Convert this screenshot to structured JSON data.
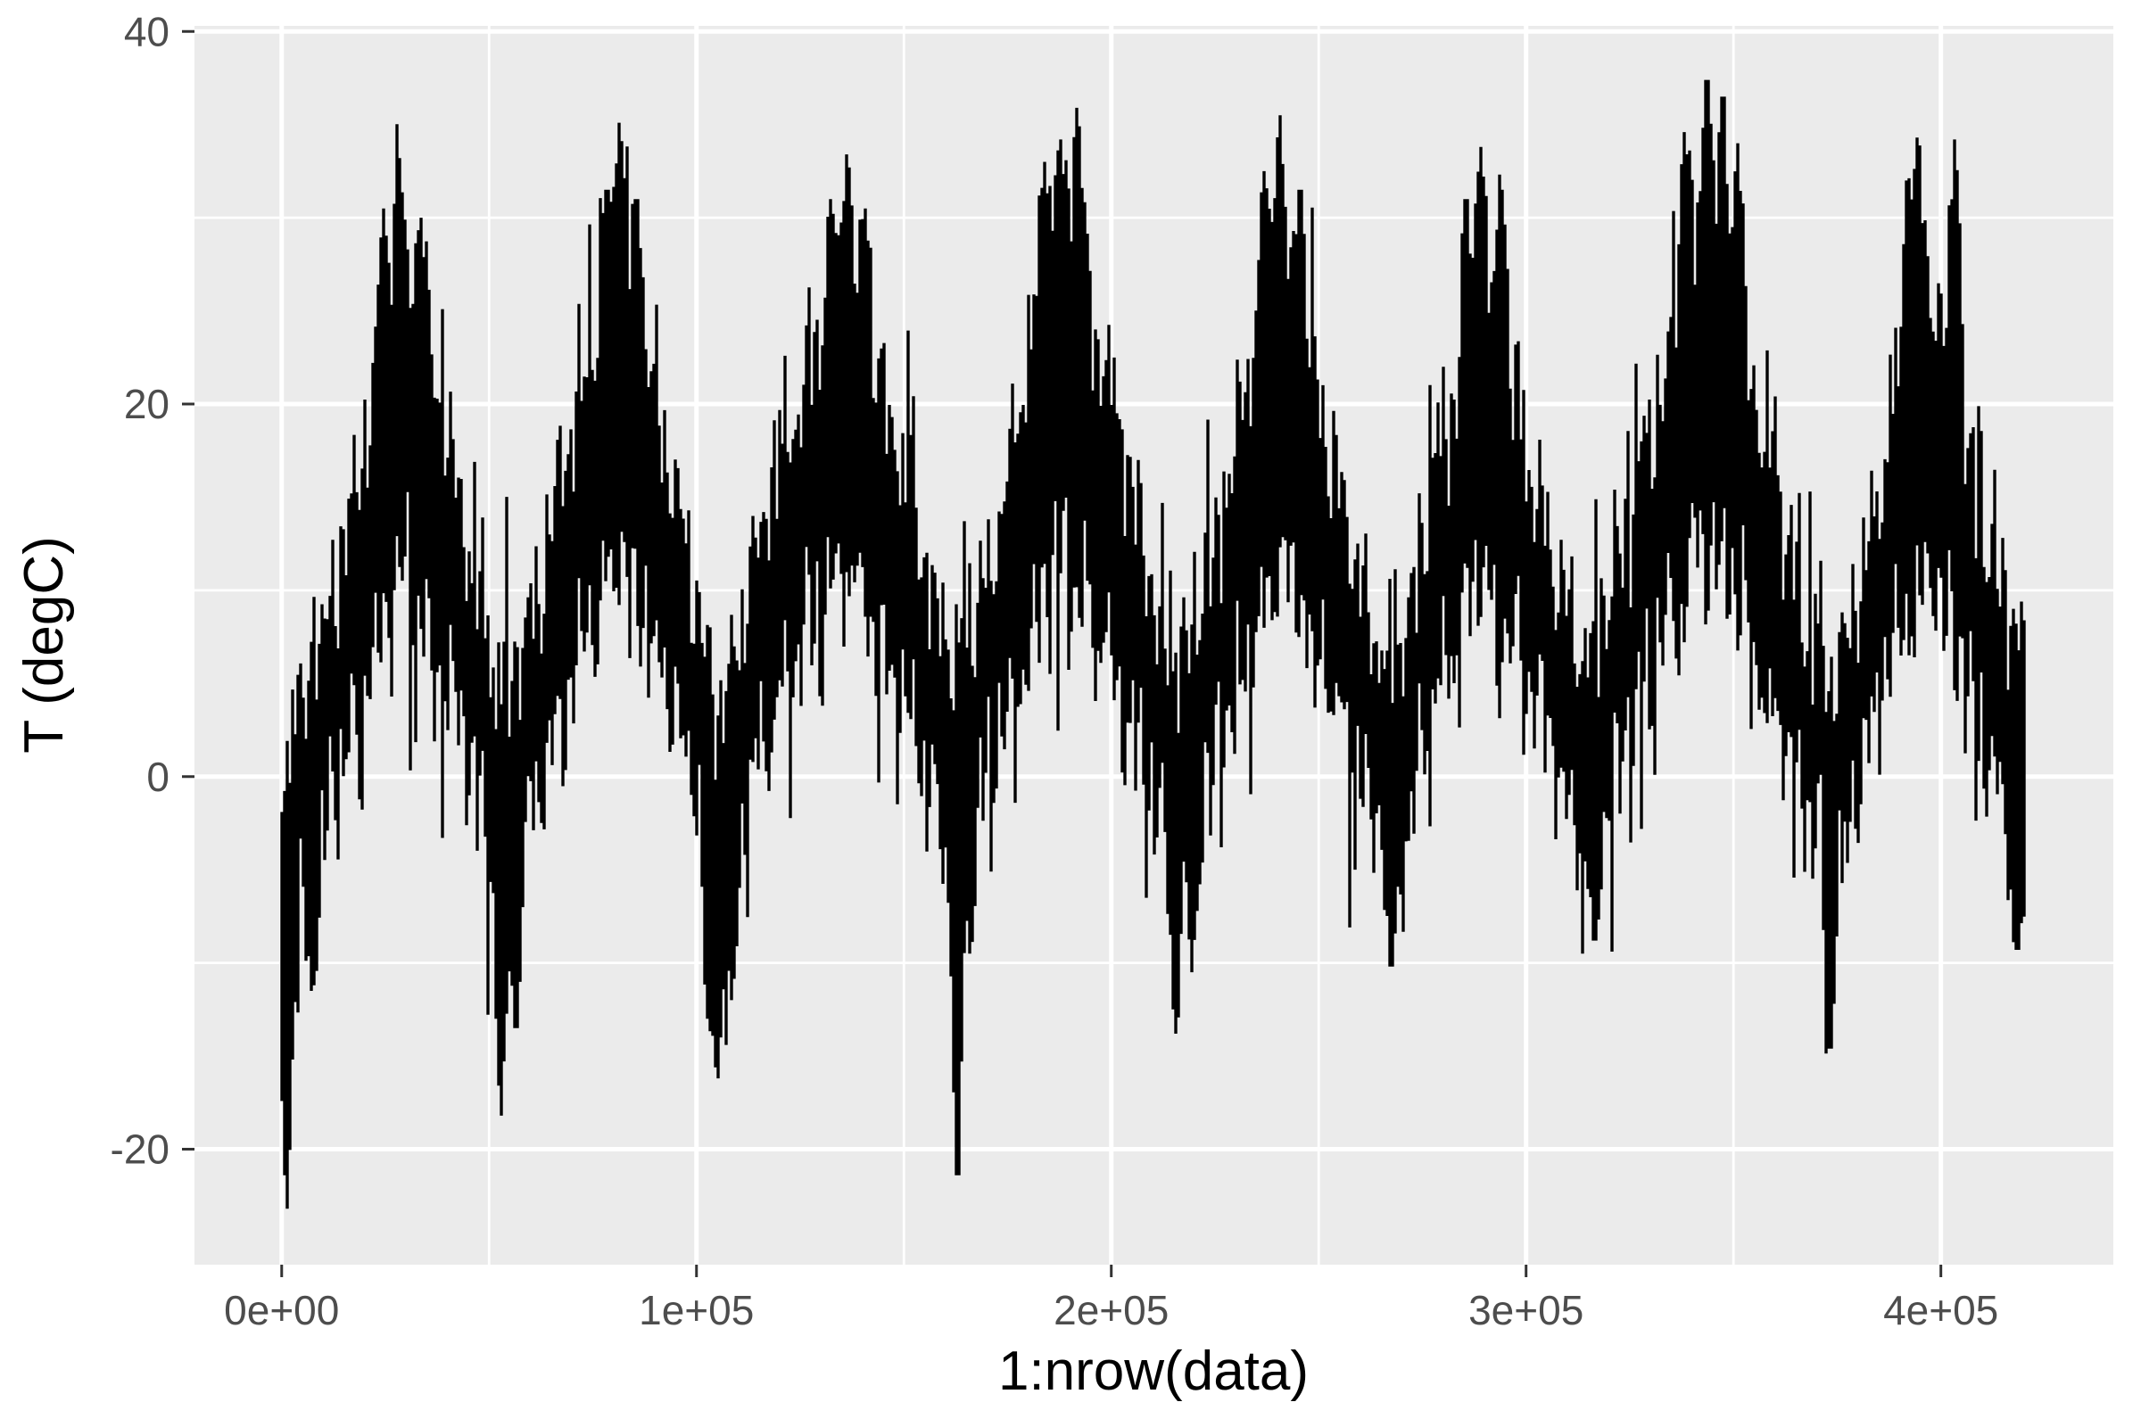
{
  "figure": {
    "kind": "ggplot2 line chart (theme_grey)",
    "background_color": "#FFFFFF",
    "panel_background_color": "#EBEBEB",
    "grid_color": "#FFFFFF",
    "axis_tick_color": "#333333",
    "axis_text_color": "#4D4D4D",
    "axis_title_color": "#000000",
    "series_color": "#000000"
  },
  "chart_data": {
    "type": "line",
    "title": "",
    "xlabel": "1:nrow(data)",
    "ylabel": "T (degC)",
    "legend": "none",
    "grid": "on",
    "n_points": 420551,
    "xlim": [
      -21027,
      441578
    ],
    "ylim": [
      -26.2,
      40.3
    ],
    "x_ticks": [
      {
        "value": 0,
        "label": "0e+00"
      },
      {
        "value": 100000,
        "label": "1e+05"
      },
      {
        "value": 200000,
        "label": "2e+05"
      },
      {
        "value": 300000,
        "label": "3e+05"
      },
      {
        "value": 400000,
        "label": "4e+05"
      }
    ],
    "y_ticks": [
      {
        "value": -20,
        "label": "-20"
      },
      {
        "value": 0,
        "label": "0"
      },
      {
        "value": 20,
        "label": "20"
      },
      {
        "value": 40,
        "label": "40"
      }
    ],
    "x_minor_ticks": [
      50000,
      150000,
      250000,
      350000
    ],
    "y_minor_ticks": [
      -10,
      10,
      30
    ],
    "series_description": "Air temperature T (degC), 10-minute records plotted against row index; 8 annual cycles, dense black band = daily/synoptic variability",
    "band_keyframes_format": [
      "x_row_index",
      "band_low_degC",
      "band_high_degC"
    ],
    "band_keyframes": [
      [
        0,
        -9,
        1
      ],
      [
        4000,
        -7,
        3
      ],
      [
        9000,
        -4,
        6
      ],
      [
        15000,
        1,
        12
      ],
      [
        21000,
        6,
        19
      ],
      [
        28200,
        11,
        27
      ],
      [
        33000,
        9,
        25
      ],
      [
        38000,
        6,
        20
      ],
      [
        44000,
        2,
        13
      ],
      [
        49000,
        -3,
        7
      ],
      [
        52900,
        -7,
        4
      ],
      [
        57000,
        -4,
        6
      ],
      [
        62000,
        0,
        10
      ],
      [
        67000,
        3,
        16
      ],
      [
        74000,
        8,
        22
      ],
      [
        81400,
        12,
        28
      ],
      [
        87000,
        9,
        24
      ],
      [
        93000,
        5,
        17
      ],
      [
        99000,
        1,
        11
      ],
      [
        105100,
        -8,
        3
      ],
      [
        110000,
        -3,
        7
      ],
      [
        116000,
        2,
        13
      ],
      [
        122000,
        5,
        18
      ],
      [
        129000,
        9,
        23
      ],
      [
        136300,
        11,
        27
      ],
      [
        141000,
        9,
        24
      ],
      [
        147000,
        5,
        18
      ],
      [
        153000,
        2,
        13
      ],
      [
        158500,
        -2,
        7
      ],
      [
        162900,
        -5,
        5
      ],
      [
        167000,
        -1,
        8
      ],
      [
        172000,
        2,
        12
      ],
      [
        178000,
        5,
        19
      ],
      [
        183000,
        9,
        24
      ],
      [
        187600,
        12,
        28
      ],
      [
        193000,
        10,
        26
      ],
      [
        199000,
        7,
        21
      ],
      [
        205000,
        3,
        15
      ],
      [
        211000,
        -1,
        8
      ],
      [
        215500,
        -5,
        6
      ],
      [
        220000,
        -2,
        8
      ],
      [
        226000,
        2,
        13
      ],
      [
        232000,
        6,
        20
      ],
      [
        237000,
        9,
        24
      ],
      [
        240500,
        12,
        28
      ],
      [
        246000,
        9,
        24
      ],
      [
        252000,
        6,
        18
      ],
      [
        258000,
        2,
        12
      ],
      [
        263000,
        -2,
        7
      ],
      [
        267500,
        -4,
        6
      ],
      [
        272000,
        -1,
        9
      ],
      [
        278000,
        4,
        16
      ],
      [
        284000,
        8,
        21
      ],
      [
        289000,
        11,
        27
      ],
      [
        295000,
        9,
        23
      ],
      [
        301000,
        5,
        16
      ],
      [
        307000,
        1,
        11
      ],
      [
        312000,
        -2,
        7
      ],
      [
        316500,
        -4,
        6
      ],
      [
        321000,
        0,
        10
      ],
      [
        327000,
        4,
        15
      ],
      [
        333000,
        8,
        21
      ],
      [
        339000,
        11,
        26
      ],
      [
        343600,
        13,
        29
      ],
      [
        349000,
        11,
        26
      ],
      [
        355000,
        7,
        21
      ],
      [
        361000,
        3,
        14
      ],
      [
        367000,
        -1,
        8
      ],
      [
        373300,
        -5,
        5
      ],
      [
        378000,
        -2,
        8
      ],
      [
        383000,
        2,
        13
      ],
      [
        389000,
        7,
        19
      ],
      [
        394400,
        11,
        26
      ],
      [
        400000,
        10,
        25
      ],
      [
        406000,
        5,
        17
      ],
      [
        411000,
        1,
        12
      ],
      [
        415000,
        -2,
        10
      ],
      [
        418500,
        -5,
        8
      ],
      [
        420551,
        -6,
        5
      ]
    ],
    "spike_events_format": [
      "x_row_index",
      "extreme_value_degC"
    ],
    "spike_events": [
      [
        1200,
        -23.2
      ],
      [
        7300,
        -11.5
      ],
      [
        24500,
        30.5
      ],
      [
        28200,
        33.2
      ],
      [
        33500,
        30.0
      ],
      [
        52900,
        -18.2
      ],
      [
        56500,
        -13.5
      ],
      [
        78500,
        31.5
      ],
      [
        81400,
        35.1
      ],
      [
        85500,
        31.0
      ],
      [
        103000,
        -13.0
      ],
      [
        105100,
        -16.2
      ],
      [
        108500,
        -12.0
      ],
      [
        132500,
        31.0
      ],
      [
        136300,
        33.4
      ],
      [
        140500,
        30.5
      ],
      [
        162900,
        -21.4
      ],
      [
        166000,
        -9.5
      ],
      [
        184000,
        33.0
      ],
      [
        187600,
        34.2
      ],
      [
        191900,
        35.9
      ],
      [
        215500,
        -13.8
      ],
      [
        219500,
        -10.5
      ],
      [
        237000,
        32.5
      ],
      [
        240500,
        35.5
      ],
      [
        245500,
        31.5
      ],
      [
        267500,
        -10.2
      ],
      [
        285500,
        31.0
      ],
      [
        289000,
        33.8
      ],
      [
        294000,
        31.5
      ],
      [
        316500,
        -8.8
      ],
      [
        338300,
        34.6
      ],
      [
        343600,
        37.4
      ],
      [
        347400,
        36.5
      ],
      [
        351000,
        34.0
      ],
      [
        373300,
        -14.6
      ],
      [
        392000,
        32.0
      ],
      [
        394400,
        34.3
      ],
      [
        403500,
        34.2
      ],
      [
        418500,
        -9.3
      ]
    ],
    "render_seed": 42
  }
}
